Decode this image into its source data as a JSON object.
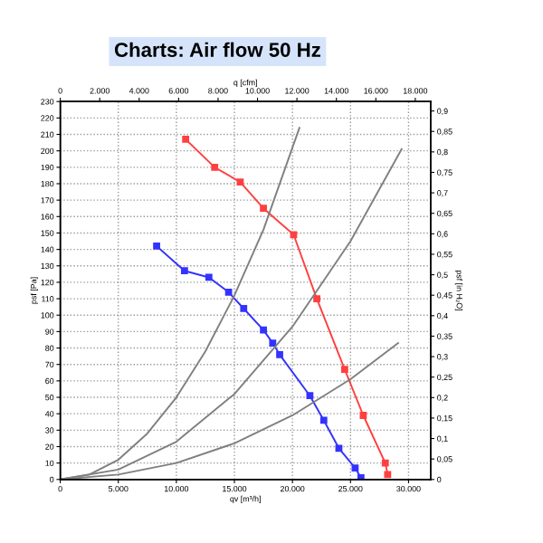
{
  "chart_data": {
    "type": "line",
    "title": "Charts: Air flow 50 Hz",
    "xlabel": "qv [m³/h]",
    "ylabel": "psf [Pa]",
    "x2label": "q [cfm]",
    "y2label": "psf [in H₂O]",
    "xlim": [
      0,
      31900
    ],
    "xticks": [
      0,
      {
        "value": 5000,
        "label": "5.000"
      },
      {
        "value": 10000,
        "label": "10.000"
      },
      {
        "value": 15000,
        "label": "15.000"
      },
      {
        "value": 20000,
        "label": "20.000"
      },
      {
        "value": 25000,
        "label": "25.000"
      },
      {
        "value": 30000,
        "label": "30.000"
      }
    ],
    "x2lim": [
      0,
      18776
    ],
    "x2ticks": [
      0,
      {
        "value": 2000,
        "label": "2.000"
      },
      {
        "value": 4000,
        "label": "4.000"
      },
      {
        "value": 6000,
        "label": "6.000"
      },
      {
        "value": 8000,
        "label": "8.000"
      },
      {
        "value": 10000,
        "label": "10.000"
      },
      {
        "value": 12000,
        "label": "12.000"
      },
      {
        "value": 14000,
        "label": "14.000"
      },
      {
        "value": 16000,
        "label": "16.000"
      },
      {
        "value": 18000,
        "label": "18.000"
      }
    ],
    "ylim": [
      0,
      230
    ],
    "yticks": [
      0,
      10,
      20,
      30,
      40,
      50,
      60,
      70,
      80,
      90,
      100,
      110,
      120,
      130,
      140,
      150,
      160,
      170,
      180,
      190,
      200,
      210,
      220,
      230
    ],
    "y2lim": [
      0,
      0.923
    ],
    "y2ticks": [
      0,
      {
        "value": 0.05,
        "label": "0,05"
      },
      {
        "value": 0.1,
        "label": "0,1"
      },
      {
        "value": 0.15,
        "label": "0,15"
      },
      {
        "value": 0.2,
        "label": "0,2"
      },
      {
        "value": 0.25,
        "label": "0,25"
      },
      {
        "value": 0.3,
        "label": "0,3"
      },
      {
        "value": 0.35,
        "label": "0,35"
      },
      {
        "value": 0.4,
        "label": "0,4"
      },
      {
        "value": 0.45,
        "label": "0,45"
      },
      {
        "value": 0.5,
        "label": "0,5"
      },
      {
        "value": 0.55,
        "label": "0,55"
      },
      {
        "value": 0.6,
        "label": "0,6"
      },
      {
        "value": 0.65,
        "label": "0,65"
      },
      {
        "value": 0.7,
        "label": "0,7"
      },
      {
        "value": 0.75,
        "label": "0,75"
      },
      {
        "value": 0.8,
        "label": "0,8"
      },
      {
        "value": 0.85,
        "label": "0,85"
      },
      {
        "value": 0.9,
        "label": "0,9"
      }
    ],
    "grid": true,
    "line_style": "solid",
    "series": [
      {
        "color": "#ff4040",
        "marker": "square",
        "x": [
          10800,
          13300,
          15500,
          17500,
          20100,
          22100,
          24500,
          26100,
          28000,
          28200
        ],
        "values": [
          207,
          190,
          181,
          165,
          149,
          110,
          67,
          39,
          10,
          3
        ]
      },
      {
        "color": "#3333ff",
        "marker": "square",
        "x": [
          8300,
          10700,
          12800,
          14500,
          15800,
          17500,
          18300,
          18900,
          21500,
          22700,
          24000,
          25400,
          25900
        ],
        "values": [
          142,
          127,
          123,
          114,
          104,
          91,
          83,
          76,
          51,
          36,
          19,
          7,
          1
        ]
      },
      {
        "color": "#808080",
        "marker": "none",
        "x": [
          0,
          2500,
          5000,
          7500,
          10000,
          12500,
          15000,
          17500,
          20600
        ],
        "values": [
          0,
          3,
          12,
          28,
          50,
          78,
          112,
          152,
          214
        ]
      },
      {
        "color": "#808080",
        "marker": "none",
        "x": [
          0,
          5000,
          10000,
          15000,
          20000,
          25000,
          29400
        ],
        "values": [
          0,
          6,
          23,
          52,
          93,
          145,
          201
        ]
      },
      {
        "color": "#808080",
        "marker": "none",
        "x": [
          0,
          5000,
          10000,
          15000,
          20000,
          25000,
          29100
        ],
        "values": [
          0,
          3,
          10,
          22,
          39,
          61,
          83
        ]
      }
    ]
  }
}
